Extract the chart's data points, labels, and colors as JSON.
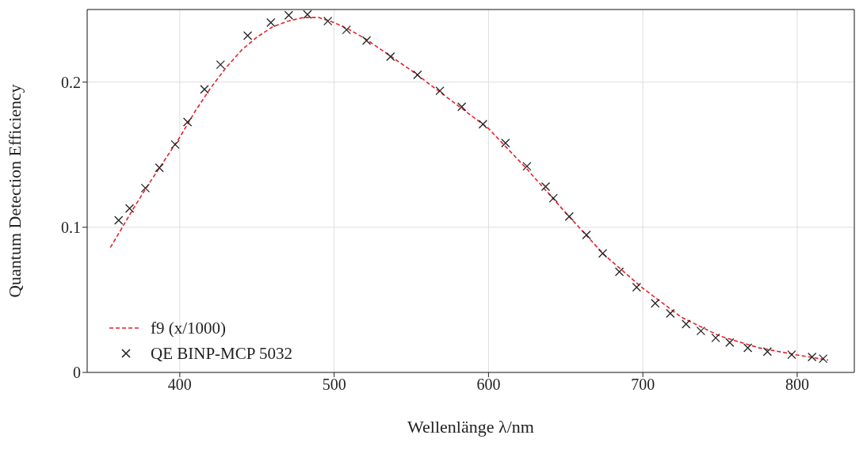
{
  "chart_data": {
    "type": "scatter",
    "xlabel": "Wellenlänge λ/nm",
    "ylabel": "Quantum Detection Efficiency",
    "xlim": [
      340,
      837
    ],
    "xticks": [
      400,
      500,
      600,
      700,
      800
    ],
    "ylim": [
      0,
      0.25
    ],
    "yticks": [
      0,
      0.1,
      0.2
    ],
    "grid": true,
    "legend": "bottom left",
    "series": [
      {
        "name": "f9 (x/1000)",
        "type": "line",
        "color": "#e8202a",
        "line_style": "dashed",
        "marker": "none",
        "x": [
          355,
          370,
          380,
          390,
          400,
          410,
          420,
          430,
          440,
          450,
          460,
          470,
          480,
          490,
          500,
          510,
          520,
          535,
          550,
          570,
          600,
          625,
          650,
          675,
          700,
          725,
          750,
          775,
          800,
          820
        ],
        "values": [
          0.086,
          0.113,
          0.13,
          0.146,
          0.162,
          0.18,
          0.196,
          0.21,
          0.222,
          0.231,
          0.238,
          0.242,
          0.2445,
          0.2445,
          0.241,
          0.236,
          0.23,
          0.219,
          0.208,
          0.192,
          0.168,
          0.14,
          0.11,
          0.081,
          0.058,
          0.038,
          0.025,
          0.017,
          0.012,
          0.0085
        ]
      },
      {
        "name": "QE BINP-MCP 5032",
        "color": "#222222",
        "marker": "cross",
        "x": [
          360.4,
          367.5,
          377.7,
          386.8,
          397,
          405,
          416,
          426.4,
          444,
          459,
          470.6,
          482.7,
          495.9,
          508,
          521,
          536.5,
          554,
          568.5,
          582.7,
          596.4,
          611,
          624.9,
          637,
          642,
          652.3,
          663.5,
          674,
          684.8,
          696,
          708,
          717.8,
          728,
          737.6,
          747.2,
          756.3,
          768,
          780.7,
          796.4,
          809.6,
          816.8
        ],
        "values": [
          0.1048,
          0.113,
          0.127,
          0.141,
          0.157,
          0.1725,
          0.195,
          0.212,
          0.232,
          0.241,
          0.246,
          0.2466,
          0.242,
          0.236,
          0.2286,
          0.2175,
          0.205,
          0.194,
          0.183,
          0.171,
          0.158,
          0.142,
          0.128,
          0.12,
          0.1074,
          0.0947,
          0.082,
          0.0693,
          0.0587,
          0.0476,
          0.0407,
          0.0333,
          0.0286,
          0.0238,
          0.0206,
          0.0169,
          0.0143,
          0.0122,
          0.0106,
          0.0095
        ]
      }
    ]
  }
}
